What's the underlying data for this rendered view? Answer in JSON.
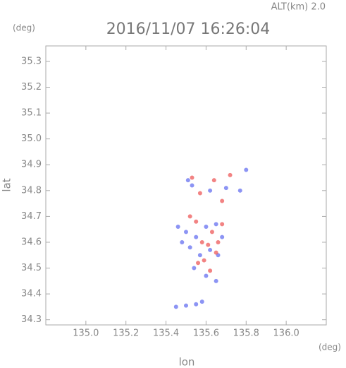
{
  "chart_data": {
    "type": "scatter",
    "title": "2016/11/07 16:26:04",
    "subtitle": "ALT(km) 2.0",
    "y_unit": "(deg)",
    "x_unit": "(deg)",
    "xlabel": "lon",
    "ylabel": "lat",
    "xlim": [
      134.8,
      136.2
    ],
    "ylim": [
      34.28,
      35.36
    ],
    "xticks": [
      {
        "value": 135.0,
        "label": "135.0"
      },
      135.2,
      135.4,
      135.6,
      135.8,
      {
        "value": 136.0,
        "label": "136.0"
      }
    ],
    "yticks": [
      35.3,
      35.2,
      35.1,
      {
        "value": 35.0,
        "label": "35.0"
      },
      34.9,
      34.8,
      34.7,
      34.6,
      34.5,
      34.4,
      34.3
    ],
    "series": [
      {
        "color": "#6670f0",
        "x": [
          135.51,
          135.53,
          135.62,
          135.7,
          135.77,
          135.8,
          135.46,
          135.5,
          135.55,
          135.6,
          135.65,
          135.68,
          135.52,
          135.57,
          135.62,
          135.54,
          135.6,
          135.65,
          135.45,
          135.5,
          135.55,
          135.58,
          135.48,
          135.66
        ],
        "y": [
          34.84,
          34.82,
          34.8,
          34.81,
          34.8,
          34.88,
          34.66,
          34.64,
          34.62,
          34.66,
          34.67,
          34.62,
          34.58,
          34.55,
          34.57,
          34.5,
          34.47,
          34.45,
          34.35,
          34.355,
          34.36,
          34.37,
          34.6,
          34.55
        ]
      },
      {
        "color": "#ee5a5a",
        "x": [
          135.53,
          135.57,
          135.64,
          135.68,
          135.72,
          135.52,
          135.55,
          135.63,
          135.68,
          135.58,
          135.61,
          135.65,
          135.56,
          135.62,
          135.59,
          135.66
        ],
        "y": [
          34.85,
          34.79,
          34.84,
          34.76,
          34.86,
          34.7,
          34.68,
          34.64,
          34.67,
          34.6,
          34.59,
          34.56,
          34.52,
          34.49,
          34.53,
          34.6
        ]
      }
    ]
  }
}
